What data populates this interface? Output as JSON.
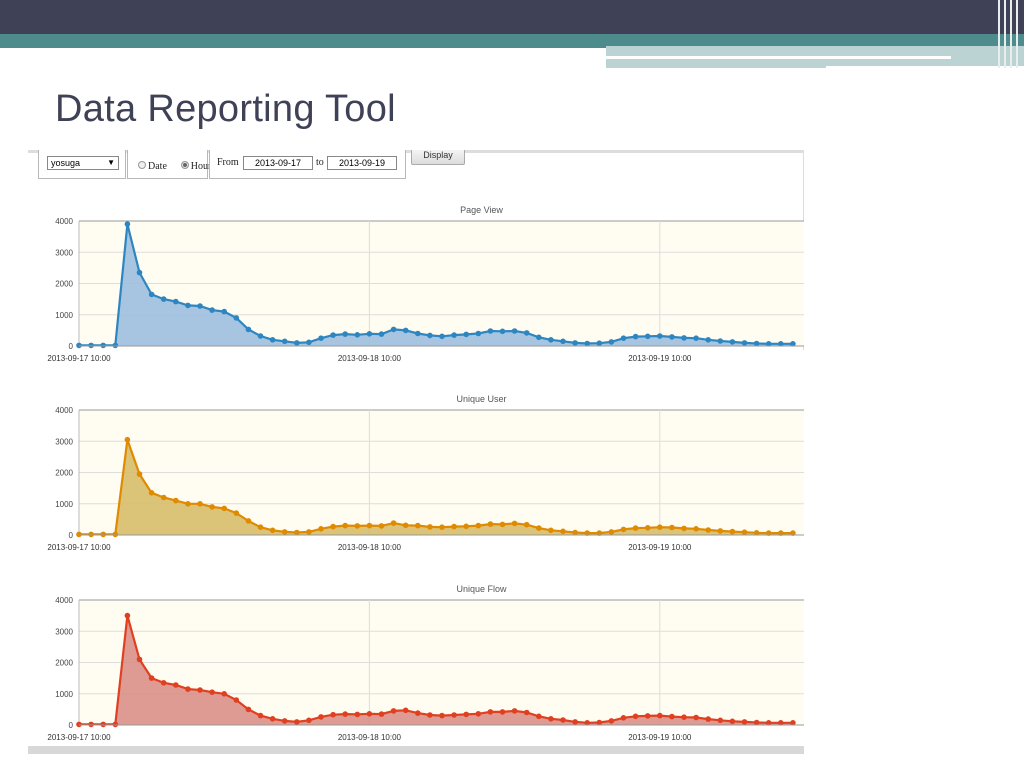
{
  "slide": {
    "title": "Data Reporting Tool"
  },
  "controls": {
    "user_select": "yosuga",
    "radio_date": "Date",
    "radio_hour": "Hour",
    "selected_granularity": "Hour",
    "from_label": "From",
    "from_value": "2013-09-17",
    "to_label": "to",
    "to_value": "2013-09-19",
    "display_button": "Display"
  },
  "chart_data": [
    {
      "type": "area",
      "title": "Page View",
      "color": "#2e86c1",
      "fill": "#9dbfdf",
      "ylim": [
        0,
        4000
      ],
      "yticks": [
        "0",
        "1000",
        "2000",
        "3000",
        "4000"
      ],
      "xtick_labels": [
        "2013-09-17 10:00",
        "2013-09-18 10:00",
        "2013-09-19 10:00"
      ],
      "xtick_index": [
        0,
        24,
        48
      ],
      "values": [
        20,
        20,
        20,
        20,
        3900,
        2350,
        1650,
        1500,
        1420,
        1300,
        1280,
        1150,
        1100,
        900,
        530,
        320,
        200,
        150,
        100,
        120,
        250,
        350,
        380,
        360,
        390,
        380,
        530,
        500,
        400,
        340,
        310,
        350,
        370,
        400,
        480,
        470,
        480,
        420,
        280,
        200,
        150,
        100,
        80,
        90,
        130,
        250,
        300,
        310,
        320,
        290,
        260,
        250,
        200,
        160,
        130,
        100,
        80,
        70,
        70,
        70
      ]
    },
    {
      "type": "area",
      "title": "Unique User",
      "color": "#e08a00",
      "fill": "#d7bc6a",
      "ylim": [
        0,
        4000
      ],
      "yticks": [
        "0",
        "1000",
        "2000",
        "3000",
        "4000"
      ],
      "xtick_labels": [
        "2013-09-17 10:00",
        "2013-09-18 10:00",
        "2013-09-19 10:00"
      ],
      "xtick_index": [
        0,
        24,
        48
      ],
      "values": [
        20,
        20,
        20,
        20,
        3050,
        1950,
        1350,
        1200,
        1100,
        1000,
        1000,
        900,
        850,
        700,
        450,
        250,
        150,
        100,
        80,
        100,
        200,
        270,
        300,
        290,
        300,
        290,
        380,
        310,
        300,
        260,
        250,
        270,
        280,
        300,
        350,
        340,
        370,
        330,
        220,
        150,
        120,
        80,
        60,
        60,
        100,
        180,
        220,
        230,
        250,
        240,
        210,
        200,
        160,
        130,
        110,
        90,
        70,
        60,
        60,
        60
      ]
    },
    {
      "type": "area",
      "title": "Unique Flow",
      "color": "#e04020",
      "fill": "#d99088",
      "ylim": [
        0,
        4000
      ],
      "yticks": [
        "0",
        "1000",
        "2000",
        "3000",
        "4000"
      ],
      "xtick_labels": [
        "2013-09-17 10:00",
        "2013-09-18 10:00",
        "2013-09-19 10:00"
      ],
      "xtick_index": [
        0,
        24,
        48
      ],
      "values": [
        20,
        20,
        20,
        20,
        3500,
        2100,
        1500,
        1350,
        1280,
        1150,
        1120,
        1050,
        1000,
        800,
        500,
        300,
        200,
        130,
        100,
        150,
        260,
        330,
        350,
        340,
        360,
        350,
        450,
        470,
        380,
        320,
        300,
        320,
        340,
        360,
        420,
        420,
        450,
        400,
        280,
        200,
        160,
        100,
        70,
        80,
        130,
        230,
        280,
        290,
        300,
        270,
        250,
        240,
        190,
        150,
        120,
        100,
        80,
        70,
        70,
        70
      ]
    }
  ]
}
